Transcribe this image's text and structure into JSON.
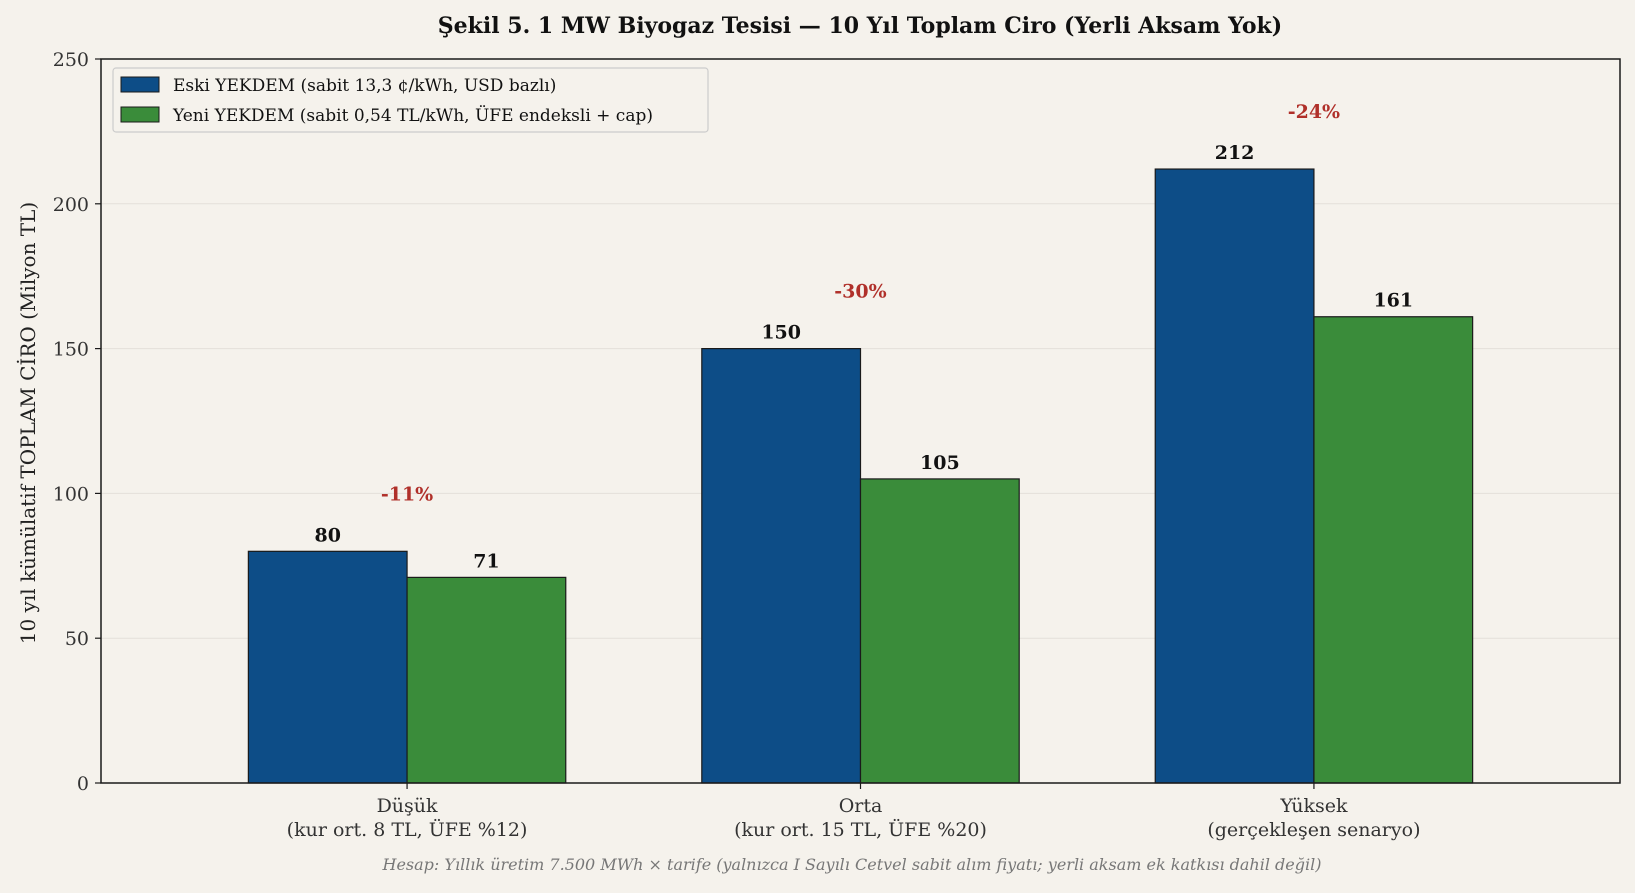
{
  "chart_data": {
    "type": "bar",
    "title": "Şekil 5. 1 MW Biyogaz Tesisi — 10 Yıl Toplam Ciro (Yerli Aksam Yok)",
    "ylabel": "10 yıl kümülatif TOPLAM CİRO (Milyon TL)",
    "xlabel": "",
    "ylim": [
      0,
      250
    ],
    "yticks": [
      0,
      50,
      100,
      150,
      200,
      250
    ],
    "grid": true,
    "legend_position": "top-left",
    "categories": [
      [
        "Düşük",
        "(kur ort. 8 TL, ÜFE %12)"
      ],
      [
        "Orta",
        "(kur ort. 15 TL, ÜFE %20)"
      ],
      [
        "Yüksek",
        "(gerçekleşen senaryo)"
      ]
    ],
    "series": [
      {
        "name": "Eski YEKDEM (sabit 13,3 ¢/kWh, USD bazlı)",
        "color": "#0d4d87",
        "values": [
          80,
          150,
          212
        ],
        "labels": [
          "80",
          "150",
          "212"
        ]
      },
      {
        "name": "Yeni YEKDEM (sabit 0,54 TL/kWh, ÜFE endeksli + cap)",
        "color": "#3a8c3a",
        "values": [
          71,
          105,
          161
        ],
        "labels": [
          "71",
          "105",
          "161"
        ]
      }
    ],
    "annotations": [
      {
        "text": "-11%",
        "category": 0,
        "y": 100,
        "color": "#b0302a"
      },
      {
        "text": "-30%",
        "category": 1,
        "y": 170,
        "color": "#b0302a"
      },
      {
        "text": "-24%",
        "category": 2,
        "y": 232,
        "color": "#b0302a"
      }
    ],
    "footnote": "Hesap: Yıllık üretim 7.500 MWh × tarife (yalnızca I Sayılı Cetvel sabit alım fiyatı; yerli aksam ek katkısı dahil değil)"
  }
}
